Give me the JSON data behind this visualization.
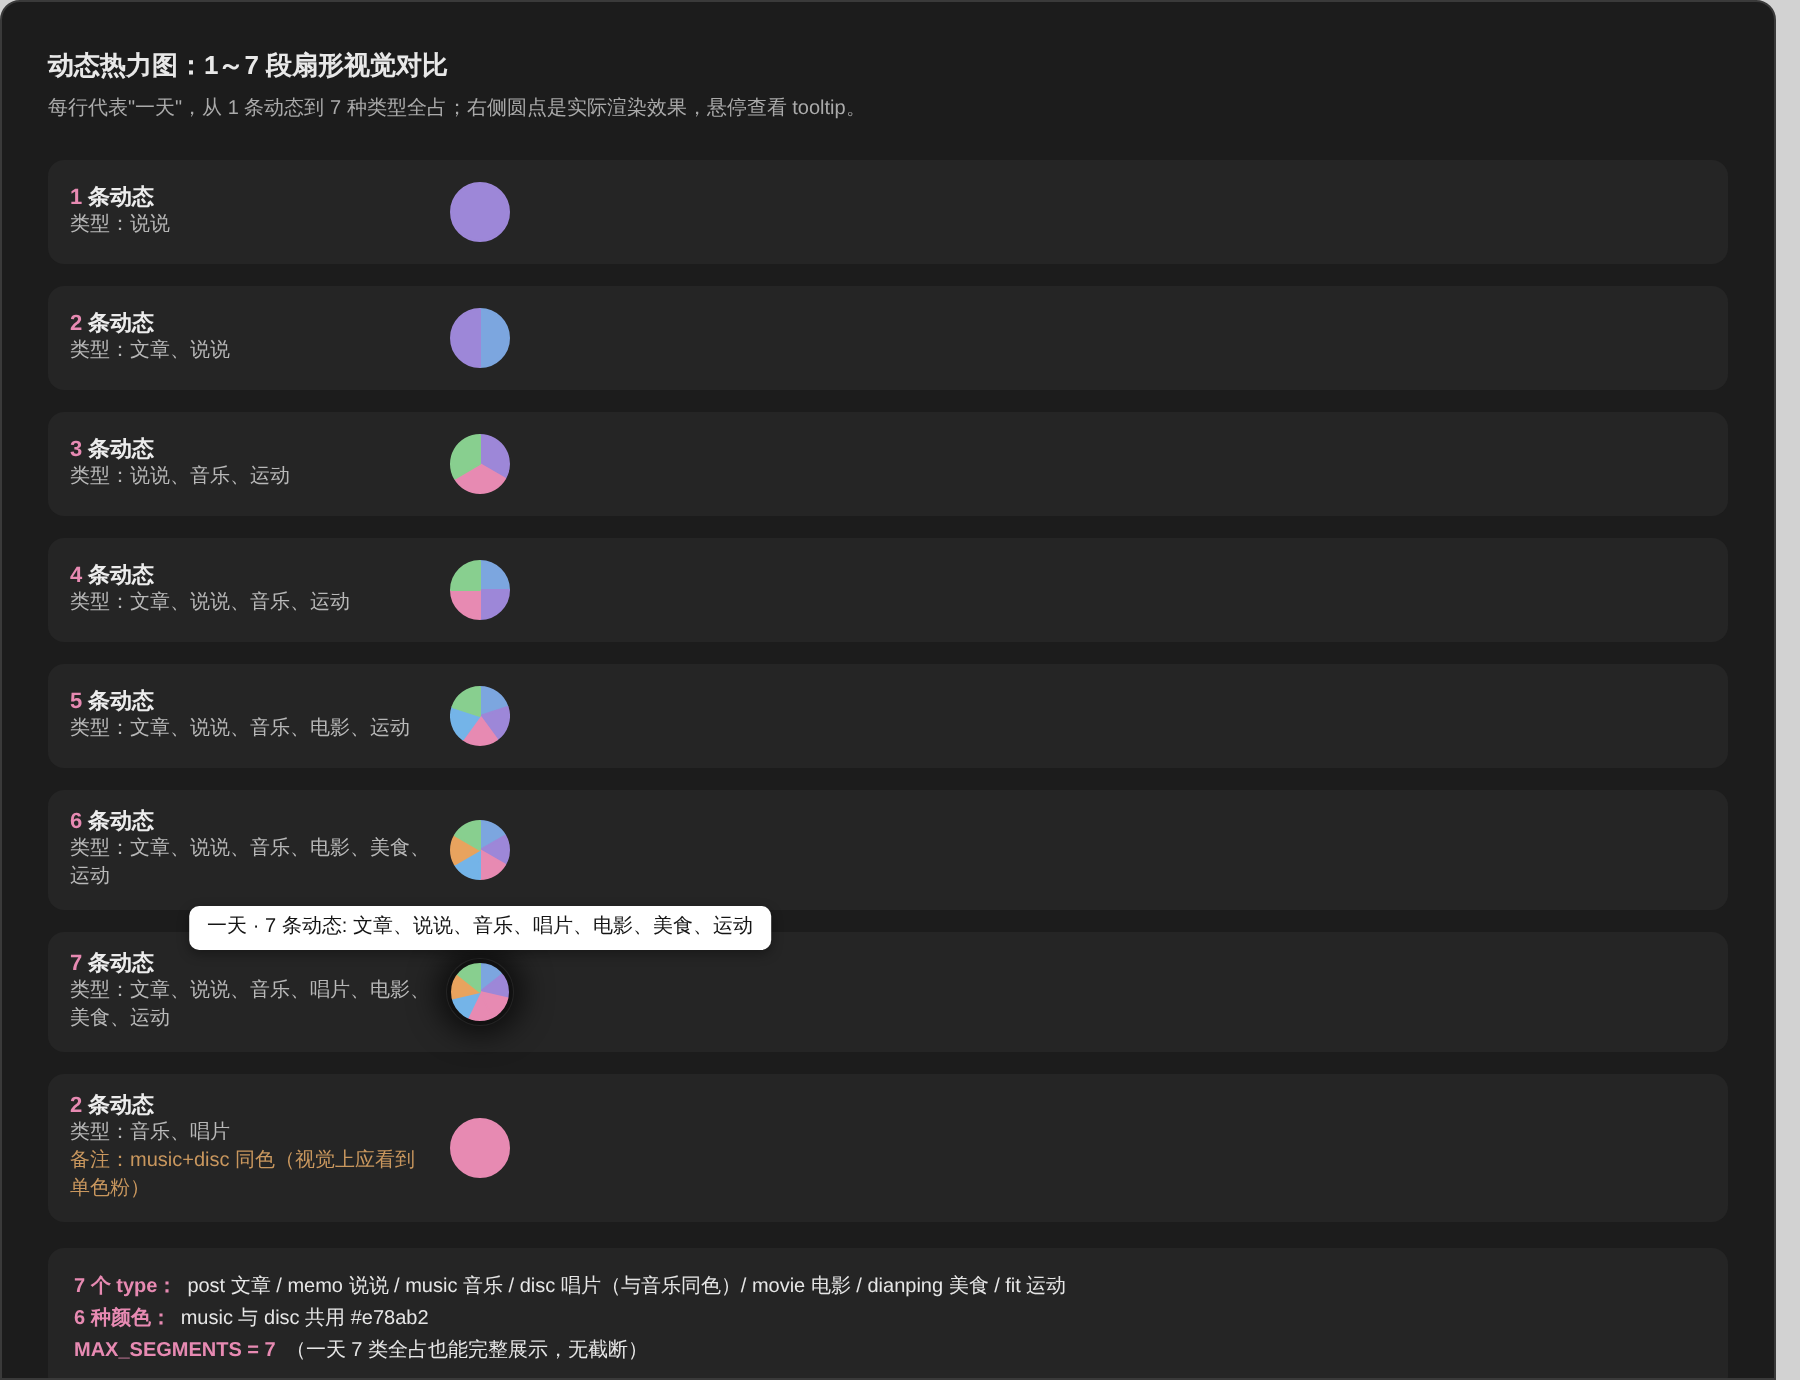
{
  "chart_data": [
    {
      "type": "other",
      "title": "动态热力图：1～7 段扇形视觉对比",
      "subtitle": "每行代表\"一天\"，从 1 条动态到 7 种类型全占；右侧圆点是实际渲染效果，悬停查看 tooltip。"
    },
    {
      "type": "pie",
      "title": "1 条动态",
      "subtitle": "类型：说说",
      "categories": [
        null
      ],
      "values": [
        100
      ],
      "colors": [
        "#9d87d8"
      ]
    },
    {
      "type": "pie",
      "title": "2 条动态",
      "subtitle": "类型：文章、说说",
      "categories": [
        null,
        null
      ],
      "values": [
        50,
        50
      ],
      "colors": [
        "#7ca6df",
        "#9d87d8"
      ]
    },
    {
      "type": "pie",
      "title": "3 条动态",
      "subtitle": "类型：说说、音乐、运动",
      "categories": [
        null,
        null,
        null
      ],
      "values": [
        33.33,
        33.33,
        33.34
      ],
      "colors": [
        "#9d87d8",
        "#e78ab2",
        "#88cf8f"
      ]
    },
    {
      "type": "pie",
      "title": "4 条动态",
      "subtitle": "类型：文章、说说、音乐、运动",
      "categories": [
        null,
        null,
        null,
        null
      ],
      "values": [
        25,
        25,
        25,
        25
      ],
      "colors": [
        "#7ca6df",
        "#9d87d8",
        "#e78ab2",
        "#88cf8f"
      ]
    },
    {
      "type": "pie",
      "title": "5 条动态",
      "subtitle": "类型：文章、说说、音乐、电影、运动",
      "categories": [
        null,
        null,
        null,
        null,
        null
      ],
      "values": [
        20,
        20,
        20,
        20,
        20
      ],
      "colors": [
        "#7ca6df",
        "#9d87d8",
        "#e78ab2",
        "#74b4e8",
        "#88cf8f"
      ]
    },
    {
      "type": "pie",
      "title": "6 条动态",
      "subtitle": "类型：文章、说说、音乐、电影、美食、运动",
      "categories": [
        null,
        null,
        null,
        null,
        null,
        null
      ],
      "values": [
        16.67,
        16.67,
        16.67,
        16.67,
        16.66,
        16.66
      ],
      "colors": [
        "#7ca6df",
        "#9d87d8",
        "#e78ab2",
        "#74b4e8",
        "#e8a35e",
        "#88cf8f"
      ]
    },
    {
      "type": "pie",
      "title": "7 条动态",
      "subtitle": "类型：文章、说说、音乐、唱片、电影、美食、运动",
      "categories": [
        null,
        null,
        null,
        null,
        null,
        null,
        null
      ],
      "values": [
        14.29,
        14.29,
        14.29,
        14.29,
        14.28,
        14.28,
        14.28
      ],
      "colors": [
        "#7ca6df",
        "#9d87d8",
        "#e78ab2",
        "#e78ab2",
        "#74b4e8",
        "#e8a35e",
        "#88cf8f"
      ],
      "annotations": [
        "一天 · 7 条动态: 文章、说说、音乐、唱片、电影、美食、运动"
      ]
    },
    {
      "type": "pie",
      "title": "2 条动态",
      "subtitle": "类型：音乐、唱片",
      "categories": [
        null,
        null
      ],
      "values": [
        50,
        50
      ],
      "colors": [
        "#e78ab2",
        "#e78ab2"
      ],
      "annotations": [
        "备注：music+disc 同色（视觉上应看到单色粉）"
      ]
    },
    {
      "type": "other",
      "annotations": [
        "7 个 type：",
        "post 文章 / memo 说说 / music 音乐 / disc 唱片（与音乐同色）/ movie 电影 / dianping 美食 / fit 运动",
        "6 种颜色：",
        "music 与 disc 共用 #e78ab2",
        "MAX_SEGMENTS = 7",
        "（一天 7 类全占也能完整展示，无截断）"
      ]
    }
  ]
}
